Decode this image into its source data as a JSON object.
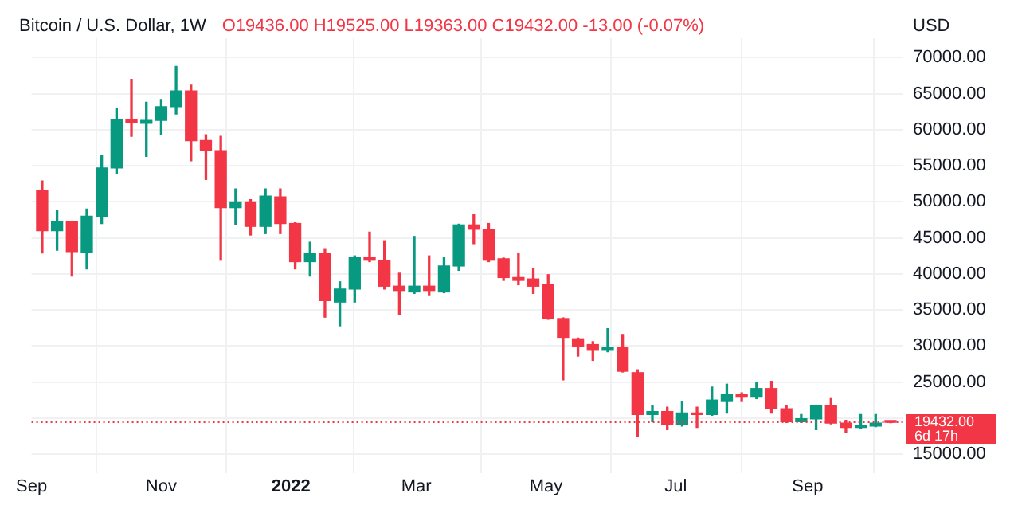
{
  "chart_data": {
    "type": "candlestick",
    "title": "Bitcoin / U.S. Dollar, 1W",
    "subtitle": "O19436.00 H19525.00 L19363.00 C19432.00 -13.00 (-0.07%)",
    "ylabel": "USD",
    "x": [
      "2021-09-06",
      "2021-09-13",
      "2021-09-20",
      "2021-09-27",
      "2021-10-04",
      "2021-10-11",
      "2021-10-18",
      "2021-10-25",
      "2021-11-01",
      "2021-11-08",
      "2021-11-15",
      "2021-11-22",
      "2021-11-29",
      "2021-12-06",
      "2021-12-13",
      "2021-12-20",
      "2021-12-27",
      "2022-01-03",
      "2022-01-10",
      "2022-01-17",
      "2022-01-24",
      "2022-01-31",
      "2022-02-07",
      "2022-02-14",
      "2022-02-21",
      "2022-02-28",
      "2022-03-07",
      "2022-03-14",
      "2022-03-21",
      "2022-03-28",
      "2022-04-04",
      "2022-04-11",
      "2022-04-18",
      "2022-04-25",
      "2022-05-02",
      "2022-05-09",
      "2022-05-16",
      "2022-05-23",
      "2022-05-30",
      "2022-06-06",
      "2022-06-13",
      "2022-06-20",
      "2022-06-27",
      "2022-07-04",
      "2022-07-11",
      "2022-07-18",
      "2022-07-25",
      "2022-08-01",
      "2022-08-08",
      "2022-08-15",
      "2022-08-22",
      "2022-08-29",
      "2022-09-05",
      "2022-09-12",
      "2022-09-19",
      "2022-09-26",
      "2022-10-03",
      "2022-10-10"
    ],
    "ohlc": [
      [
        51600,
        52900,
        42900,
        46000
      ],
      [
        46000,
        48800,
        43300,
        47200
      ],
      [
        47200,
        47300,
        39700,
        43100
      ],
      [
        43000,
        49000,
        40700,
        48000
      ],
      [
        48000,
        56500,
        47000,
        54700
      ],
      [
        54700,
        63000,
        53900,
        61400
      ],
      [
        61400,
        67000,
        59100,
        61000
      ],
      [
        60900,
        63800,
        56300,
        61300
      ],
      [
        61300,
        64200,
        59300,
        63200
      ],
      [
        63200,
        68800,
        62200,
        65400
      ],
      [
        65400,
        66200,
        55700,
        58500
      ],
      [
        58500,
        59300,
        53100,
        57100
      ],
      [
        57100,
        59100,
        41900,
        49200
      ],
      [
        49200,
        51800,
        46800,
        50000
      ],
      [
        50000,
        50300,
        45400,
        46600
      ],
      [
        46600,
        51800,
        45600,
        50800
      ],
      [
        50700,
        51800,
        45600,
        47000
      ],
      [
        47000,
        47100,
        40700,
        41700
      ],
      [
        41700,
        44400,
        39700,
        42900
      ],
      [
        42900,
        43500,
        34000,
        36300
      ],
      [
        36100,
        38900,
        32800,
        37900
      ],
      [
        37900,
        42500,
        36100,
        42300
      ],
      [
        42300,
        45800,
        41700,
        41900
      ],
      [
        41900,
        44600,
        37900,
        38300
      ],
      [
        38300,
        40100,
        34400,
        37700
      ],
      [
        37500,
        45200,
        37300,
        38300
      ],
      [
        38300,
        42500,
        37100,
        37700
      ],
      [
        37500,
        42300,
        37400,
        41100
      ],
      [
        41100,
        46900,
        40500,
        46800
      ],
      [
        46800,
        48200,
        44200,
        46200
      ],
      [
        46200,
        47000,
        41700,
        41900
      ],
      [
        42100,
        42200,
        39100,
        39500
      ],
      [
        39500,
        42900,
        38500,
        39100
      ],
      [
        39300,
        40700,
        37300,
        38300
      ],
      [
        38500,
        39900,
        33700,
        33800
      ],
      [
        33800,
        33900,
        25300,
        31200
      ],
      [
        31000,
        31100,
        28600,
        30000
      ],
      [
        30200,
        30600,
        28000,
        29400
      ],
      [
        29400,
        32400,
        29200,
        29800
      ],
      [
        29800,
        31600,
        26400,
        26500
      ],
      [
        26300,
        26700,
        17400,
        20500
      ],
      [
        20500,
        21700,
        19500,
        20900
      ],
      [
        20900,
        21500,
        18400,
        19100
      ],
      [
        19100,
        22300,
        18900,
        20700
      ],
      [
        20700,
        21500,
        18700,
        20500
      ],
      [
        20500,
        24300,
        20400,
        22500
      ],
      [
        22300,
        24700,
        20700,
        23300
      ],
      [
        23300,
        23500,
        22300,
        22900
      ],
      [
        22900,
        24900,
        22700,
        24100
      ],
      [
        24100,
        25100,
        20700,
        21300
      ],
      [
        21300,
        21700,
        19400,
        19500
      ],
      [
        19500,
        20500,
        19400,
        19900
      ],
      [
        19900,
        21800,
        18400,
        21700
      ],
      [
        21700,
        22700,
        19200,
        19300
      ],
      [
        19300,
        19700,
        18000,
        18700
      ],
      [
        18700,
        20500,
        18600,
        18900
      ],
      [
        18900,
        20500,
        18800,
        19300
      ],
      [
        19436,
        19525,
        19363,
        19432
      ]
    ],
    "colors": [
      "#f23645",
      "#089981",
      "#f23645",
      "#089981",
      "#089981",
      "#089981",
      "#f23645",
      "#089981",
      "#089981",
      "#089981",
      "#f23645",
      "#f23645",
      "#f23645",
      "#089981",
      "#f23645",
      "#089981",
      "#f23645",
      "#f23645",
      "#089981",
      "#f23645",
      "#089981",
      "#089981",
      "#f23645",
      "#f23645",
      "#f23645",
      "#089981",
      "#f23645",
      "#089981",
      "#089981",
      "#f23645",
      "#f23645",
      "#f23645",
      "#f23645",
      "#f23645",
      "#f23645",
      "#f23645",
      "#f23645",
      "#f23645",
      "#089981",
      "#f23645",
      "#f23645",
      "#089981",
      "#f23645",
      "#089981",
      "#f23645",
      "#089981",
      "#089981",
      "#f23645",
      "#089981",
      "#f23645",
      "#f23645",
      "#089981",
      "#089981",
      "#f23645",
      "#f23645",
      "#089981",
      "#089981",
      "#f23645"
    ],
    "xlim": [
      "2021-09-01",
      "2022-10-16"
    ],
    "xticks": [
      {
        "value": "2021-09-01",
        "label": "Sep"
      },
      {
        "value": "2021-11-01",
        "label": "Nov"
      },
      {
        "value": "2022-01-01",
        "label": "2022"
      },
      {
        "value": "2022-03-01",
        "label": "Mar"
      },
      {
        "value": "2022-05-01",
        "label": "May"
      },
      {
        "value": "2022-07-01",
        "label": "Jul"
      },
      {
        "value": "2022-09-01",
        "label": "Sep"
      }
    ],
    "ylim": [
      12400,
      72700
    ],
    "yticks": [
      {
        "value": 15000,
        "label": "15000.00"
      },
      {
        "value": 20000,
        "label": null
      },
      {
        "value": 25000,
        "label": "25000.00"
      },
      {
        "value": 30000,
        "label": "30000.00"
      },
      {
        "value": 35000,
        "label": "35000.00"
      },
      {
        "value": 40000,
        "label": "40000.00"
      },
      {
        "value": 45000,
        "label": "45000.00"
      },
      {
        "value": 50000,
        "label": "50000.00"
      },
      {
        "value": 55000,
        "label": "55000.00"
      },
      {
        "value": 60000,
        "label": "60000.00"
      },
      {
        "value": 65000,
        "label": "65000.00"
      },
      {
        "value": 70000,
        "label": "70000.00"
      }
    ],
    "ref_lines": [
      {
        "axis": "y",
        "value": 19432,
        "label": "19432.00",
        "color": "#f23645",
        "line_style": "dotted"
      }
    ],
    "annotations": [
      "6d 17h"
    ],
    "grid": true
  }
}
